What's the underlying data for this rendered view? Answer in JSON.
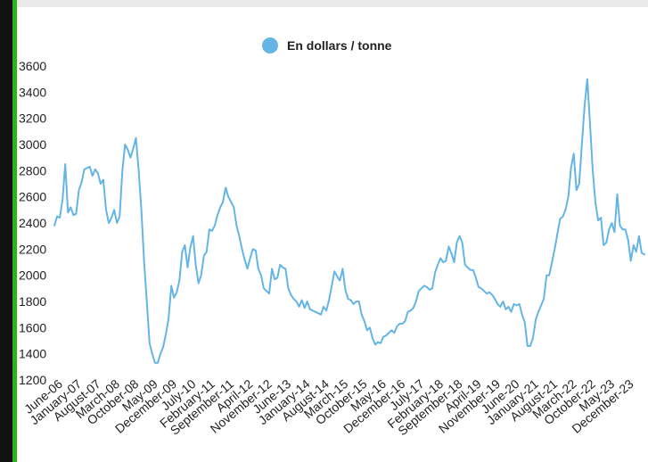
{
  "colors": {
    "series": "#64b5e6",
    "background": "#ffffff",
    "left_bar": "#111111",
    "accent_bar": "#2db31a"
  },
  "chart_data": {
    "type": "line",
    "title": "",
    "xlabel": "",
    "ylabel": "",
    "ylim": [
      1200,
      3600
    ],
    "yticks": [
      1200,
      1400,
      1600,
      1800,
      2000,
      2200,
      2400,
      2600,
      2800,
      3000,
      3200,
      3400,
      3600
    ],
    "xticks": [
      "June-06",
      "January-07",
      "August-07",
      "March-08",
      "October-08",
      "May-09",
      "December-09",
      "July-10",
      "February-11",
      "September-11",
      "April-12",
      "November-12",
      "June-13",
      "January-14",
      "August-14",
      "March-15",
      "October-15",
      "May-16",
      "December-16",
      "July-17",
      "February-18",
      "September-18",
      "April-19",
      "November-19",
      "June-20",
      "January-21",
      "August-21",
      "March-22",
      "October-22",
      "May-23",
      "December-23"
    ],
    "grid": false,
    "legend": "top-center",
    "series": [
      {
        "name": "En dollars / tonne",
        "x_start": "2006-04",
        "frequency": "monthly",
        "values": [
          2380,
          2450,
          2440,
          2580,
          2850,
          2480,
          2520,
          2460,
          2470,
          2650,
          2710,
          2810,
          2820,
          2830,
          2760,
          2810,
          2780,
          2700,
          2730,
          2500,
          2400,
          2440,
          2500,
          2400,
          2450,
          2800,
          3000,
          2960,
          2900,
          2970,
          3050,
          2800,
          2500,
          2100,
          1800,
          1480,
          1400,
          1330,
          1330,
          1400,
          1450,
          1550,
          1670,
          1920,
          1830,
          1870,
          1960,
          2180,
          2230,
          2060,
          2210,
          2300,
          2080,
          1940,
          2000,
          2150,
          2180,
          2350,
          2340,
          2380,
          2460,
          2520,
          2560,
          2670,
          2600,
          2560,
          2520,
          2380,
          2300,
          2200,
          2120,
          2050,
          2130,
          2200,
          2190,
          2050,
          2000,
          1900,
          1880,
          1860,
          2050,
          1970,
          1980,
          2080,
          2060,
          2050,
          1900,
          1850,
          1820,
          1800,
          1760,
          1810,
          1750,
          1800,
          1740,
          1730,
          1720,
          1710,
          1700,
          1760,
          1730,
          1810,
          1920,
          2030,
          1990,
          1960,
          2050,
          1890,
          1820,
          1810,
          1780,
          1800,
          1800,
          1700,
          1650,
          1580,
          1600,
          1520,
          1470,
          1490,
          1480,
          1530,
          1540,
          1560,
          1580,
          1560,
          1610,
          1630,
          1630,
          1650,
          1720,
          1730,
          1750,
          1800,
          1880,
          1900,
          1920,
          1910,
          1890,
          1900,
          2020,
          2080,
          2130,
          2100,
          2110,
          2220,
          2170,
          2100,
          2250,
          2300,
          2250,
          2080,
          2060,
          2040,
          2040,
          1980,
          1910,
          1900,
          1880,
          1860,
          1870,
          1850,
          1820,
          1780,
          1760,
          1800,
          1740,
          1760,
          1720,
          1780,
          1770,
          1780,
          1700,
          1640,
          1460,
          1460,
          1520,
          1660,
          1720,
          1770,
          1820,
          2000,
          2000,
          2100,
          2200,
          2320,
          2430,
          2450,
          2500,
          2600,
          2820,
          2930,
          2650,
          2700,
          3000,
          3300,
          3500,
          3150,
          2800,
          2550,
          2420,
          2440,
          2230,
          2250,
          2350,
          2400,
          2330,
          2620,
          2380,
          2350,
          2350,
          2270,
          2110,
          2230,
          2180,
          2300,
          2170,
          2160
        ]
      }
    ]
  }
}
